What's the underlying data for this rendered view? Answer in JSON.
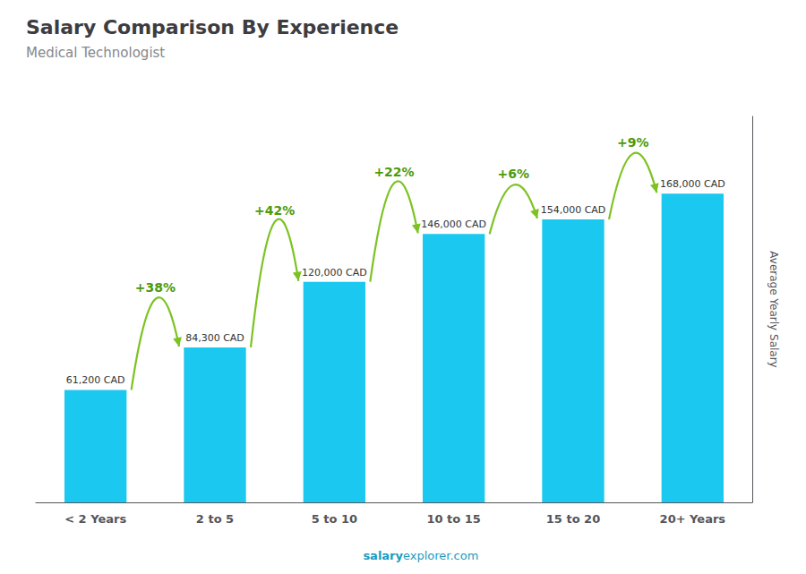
{
  "chart_data": {
    "type": "bar",
    "title": "Salary Comparison By Experience",
    "subtitle": "Medical Technologist",
    "categories": [
      "< 2 Years",
      "2 to 5",
      "5 to 10",
      "10 to 15",
      "15 to 20",
      "20+ Years"
    ],
    "values": [
      61200,
      84300,
      120000,
      146000,
      154000,
      168000
    ],
    "value_labels": [
      "61,200 CAD",
      "84,300 CAD",
      "120,000 CAD",
      "146,000 CAD",
      "154,000 CAD",
      "168,000 CAD"
    ],
    "data_labels": true,
    "annotations": [
      "+38%",
      "+42%",
      "+22%",
      "+6%",
      "+9%"
    ],
    "ylabel": "Average Yearly Salary",
    "footer": [
      "salary",
      "explorer.com"
    ],
    "color": "#1bc8f0",
    "ylim": [
      0,
      210000
    ],
    "grid": false,
    "tick_labels": "x"
  }
}
